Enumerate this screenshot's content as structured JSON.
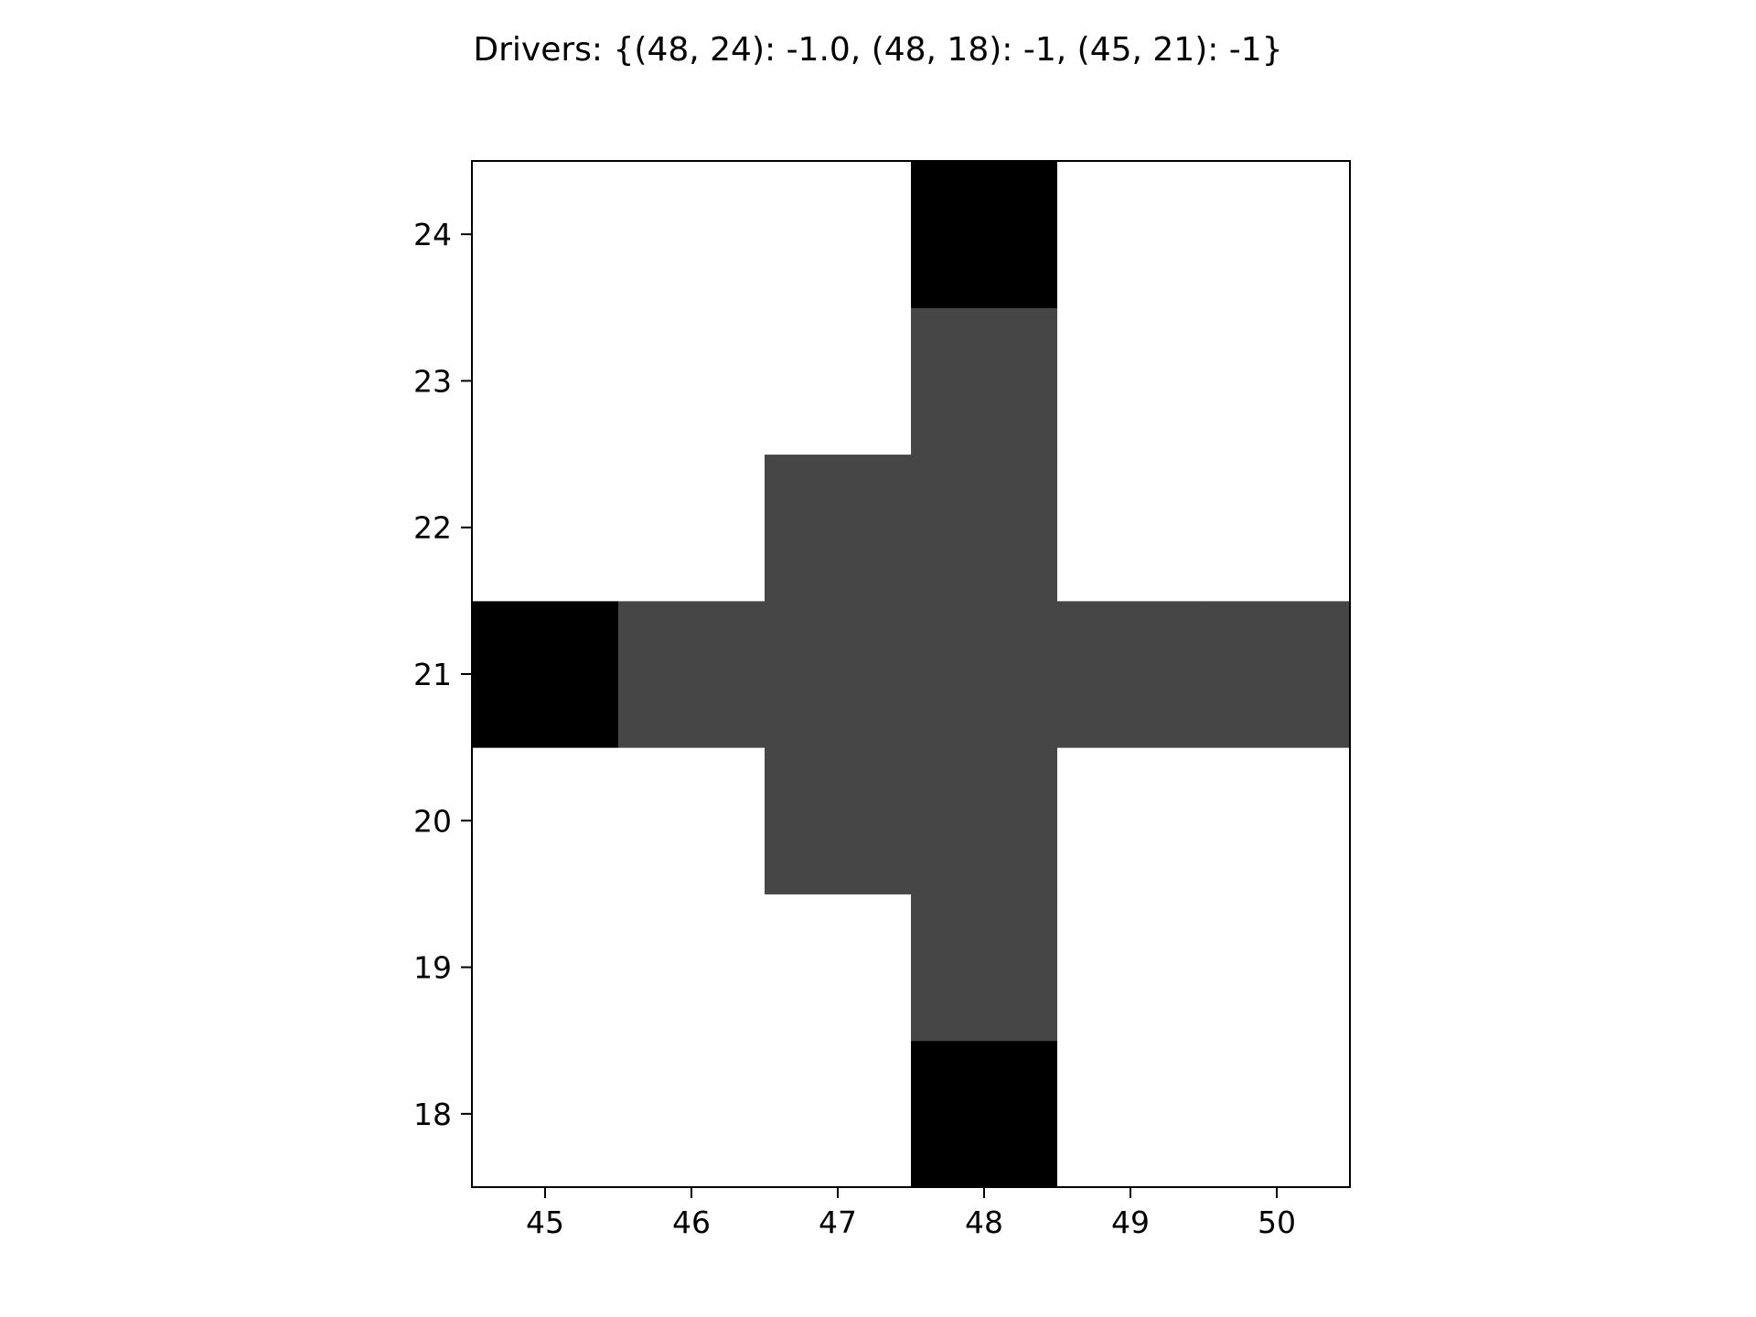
{
  "chart_data": {
    "type": "heatmap",
    "title": "Drivers: {(48, 24): -1.0, (48, 18): -1, (45, 21): -1}",
    "xlabel": "",
    "ylabel": "",
    "x": [
      45,
      46,
      47,
      48,
      49,
      50
    ],
    "y": [
      18,
      19,
      20,
      21,
      22,
      23,
      24
    ],
    "xlim": [
      44.5,
      50.5
    ],
    "ylim": [
      17.5,
      24.5
    ],
    "x_ticks": [
      "45",
      "46",
      "47",
      "48",
      "49",
      "50"
    ],
    "y_ticks": [
      "18",
      "19",
      "20",
      "21",
      "22",
      "23",
      "24"
    ],
    "grid": false,
    "legend": "none",
    "colormap": {
      "low": "#000000",
      "high": "#ffffff"
    },
    "value_range": [
      -1,
      1
    ],
    "values": [
      [
        1,
        1,
        1,
        -1,
        1,
        1
      ],
      [
        1,
        1,
        1,
        -0.45,
        1,
        1
      ],
      [
        1,
        1,
        -0.45,
        -0.45,
        1,
        1
      ],
      [
        -1,
        -0.45,
        -0.45,
        -0.45,
        -0.45,
        -0.45
      ],
      [
        1,
        1,
        -0.45,
        -0.45,
        1,
        1
      ],
      [
        1,
        1,
        1,
        -0.45,
        1,
        1
      ],
      [
        1,
        1,
        1,
        -1,
        1,
        1
      ]
    ]
  }
}
